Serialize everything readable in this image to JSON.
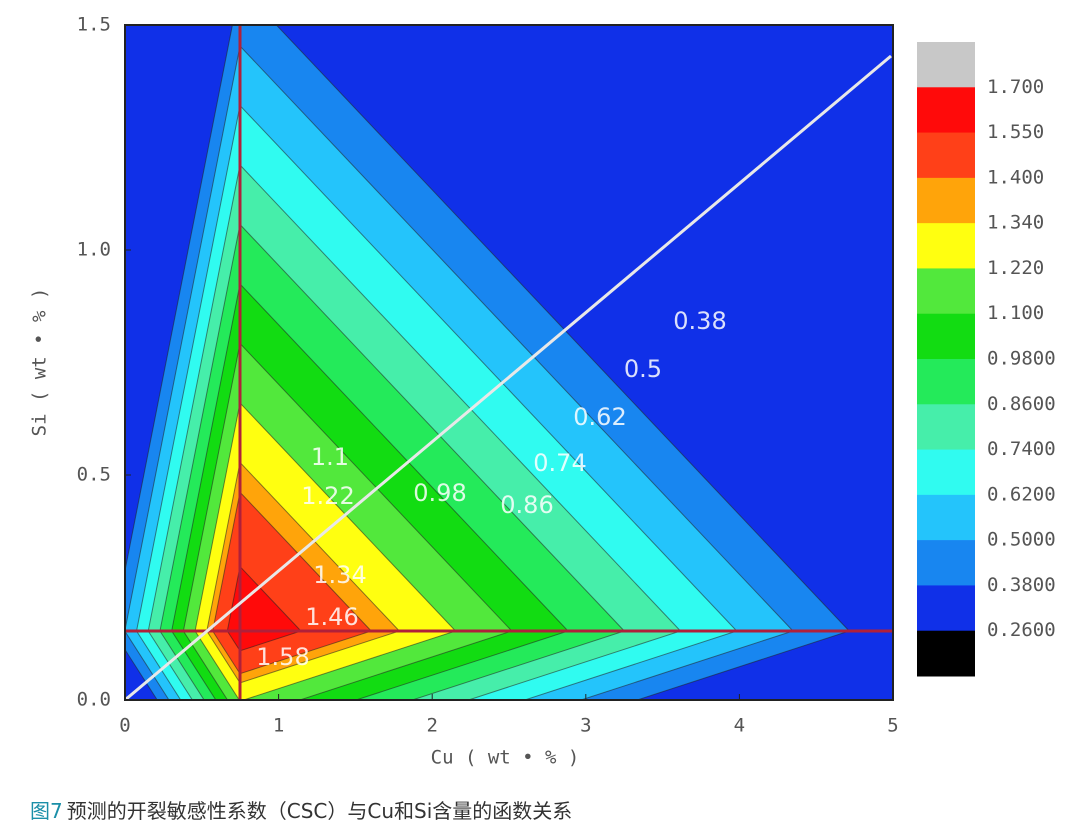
{
  "chart_data": {
    "type": "contour",
    "xlabel": "Cu ( wt • % )",
    "ylabel": "Si ( wt • % )",
    "xlim": [
      0,
      5
    ],
    "ylim": [
      0,
      1.5
    ],
    "xticks": [
      0,
      1,
      2,
      3,
      4,
      5
    ],
    "yticks": [
      {
        "value": 0,
        "label": "0.0"
      },
      0.5,
      {
        "value": 1,
        "label": "1.0"
      },
      1.5
    ],
    "colorbar": {
      "levels": [
        {
          "value": 1.7,
          "label": "1.700"
        },
        {
          "value": 1.55,
          "label": "1.550"
        },
        {
          "value": 1.4,
          "label": "1.400"
        },
        {
          "value": 1.34,
          "label": "1.340"
        },
        {
          "value": 1.22,
          "label": "1.220"
        },
        {
          "value": 1.1,
          "label": "1.100"
        },
        {
          "value": 0.98,
          "label": "0.9800"
        },
        {
          "value": 0.86,
          "label": "0.8600"
        },
        {
          "value": 0.74,
          "label": "0.7400"
        },
        {
          "value": 0.62,
          "label": "0.6200"
        },
        {
          "value": 0.5,
          "label": "0.5000"
        },
        {
          "value": 0.38,
          "label": "0.3800"
        },
        {
          "value": 0.26,
          "label": "0.2600"
        }
      ],
      "colors": [
        "#c8c8c8",
        "#ff0a0a",
        "#ff4018",
        "#ffa40a",
        "#ffff10",
        "#52e83c",
        "#12dc12",
        "#24ea5a",
        "#46eeaa",
        "#30fbf0",
        "#24c4fb",
        "#1886f0",
        "#1030e8",
        "#000000"
      ]
    },
    "contour_labels": [
      0.38,
      0.5,
      0.62,
      0.74,
      0.86,
      0.98,
      1.1,
      1.22,
      1.34,
      1.46,
      1.58
    ]
  },
  "caption": {
    "figure_label": "图7",
    "text": "预测的开裂敏感性系数（CSC）与Cu和Si含量的函数关系"
  }
}
